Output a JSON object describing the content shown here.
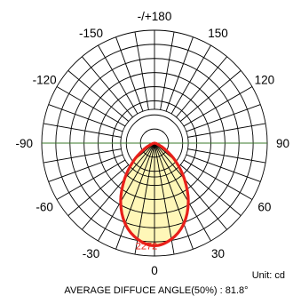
{
  "chart_data": {
    "type": "polar",
    "title": "",
    "unit": "Unit: cd",
    "peak_label": "2272",
    "footer": "AVERAGE DIFFUCE ANGLE(50%) : 81.8°",
    "angle_labels": [
      {
        "angle": 0,
        "text": "0"
      },
      {
        "angle": 30,
        "text": "30"
      },
      {
        "angle": 60,
        "text": "60"
      },
      {
        "angle": 90,
        "text": "90"
      },
      {
        "angle": 120,
        "text": "120"
      },
      {
        "angle": 150,
        "text": "150"
      },
      {
        "angle": 180,
        "text": "-/+180"
      },
      {
        "angle": -150,
        "text": "-150"
      },
      {
        "angle": -120,
        "text": "-120"
      },
      {
        "angle": -90,
        "text": "-90"
      },
      {
        "angle": -60,
        "text": "-60"
      },
      {
        "angle": -30,
        "text": "-30"
      }
    ],
    "radial_max": 2500,
    "radial_rings": 8,
    "inner_ring_fraction": 0.3,
    "spoke_step_deg": 10,
    "intensity": {
      "angles": [
        0,
        10,
        20,
        30,
        40,
        50,
        60,
        70,
        80,
        90
      ],
      "values": [
        2272,
        2160,
        1900,
        1500,
        1030,
        600,
        260,
        70,
        10,
        0
      ]
    },
    "colors": {
      "grid": "#000000",
      "curve": "#e8201a",
      "fill": "#fff7b8",
      "horizontal_axis": "#3a7a2a"
    }
  }
}
